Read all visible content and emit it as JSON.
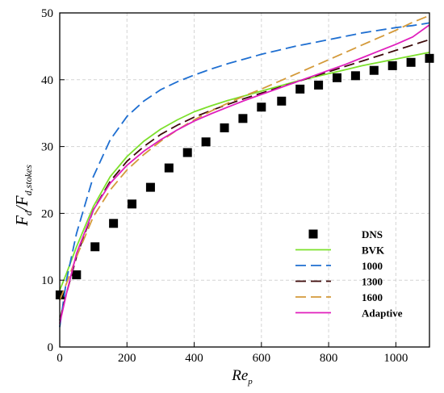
{
  "chart_data": {
    "type": "line",
    "xlabel": "Re",
    "xlabel_sub": "p",
    "ylabel": "F",
    "ylabel_sub1": "d",
    "ylabel_mid": "/F",
    "ylabel_sub2": "d,stokes",
    "xlim": [
      0,
      1100
    ],
    "ylim": [
      0,
      50
    ],
    "xticks": [
      0,
      200,
      400,
      600,
      800,
      1000
    ],
    "yticks": [
      0,
      10,
      20,
      30,
      40,
      50
    ],
    "grid": true,
    "legend_position": "bottom-right",
    "series": [
      {
        "name": "DNS",
        "style": "square-marker",
        "color": "#000000",
        "x": [
          1,
          50,
          105,
          160,
          215,
          270,
          325,
          380,
          435,
          490,
          545,
          600,
          660,
          715,
          770,
          825,
          880,
          935,
          990,
          1045,
          1100
        ],
        "y": [
          7.8,
          10.8,
          15,
          18.5,
          21.4,
          23.9,
          26.8,
          29.1,
          30.7,
          32.8,
          34.2,
          35.9,
          36.8,
          38.6,
          39.2,
          40.3,
          40.6,
          41.4,
          42.1,
          42.6,
          43.2
        ]
      },
      {
        "name": "BVK",
        "style": "solid",
        "color": "#7de02c",
        "x": [
          0,
          20,
          50,
          100,
          150,
          200,
          250,
          300,
          350,
          400,
          450,
          500,
          550,
          600,
          650,
          700,
          750,
          800,
          850,
          900,
          950,
          1000,
          1050,
          1100
        ],
        "y": [
          8.5,
          11,
          15,
          21,
          25.5,
          28.5,
          30.8,
          32.6,
          34,
          35.2,
          36.1,
          36.9,
          37.6,
          38.3,
          39,
          39.7,
          40.3,
          40.9,
          41.5,
          42.1,
          42.6,
          43.1,
          43.6,
          44.1
        ]
      },
      {
        "name": "1000",
        "style": "dash",
        "color": "#1f6fd1",
        "x": [
          0,
          20,
          50,
          100,
          150,
          200,
          250,
          300,
          350,
          400,
          450,
          500,
          550,
          600,
          650,
          700,
          750,
          800,
          850,
          900,
          950,
          1000,
          1050,
          1100
        ],
        "y": [
          3,
          10,
          17,
          25.5,
          31,
          34.5,
          36.8,
          38.5,
          39.7,
          40.7,
          41.6,
          42.4,
          43.1,
          43.8,
          44.4,
          45,
          45.5,
          46,
          46.5,
          47,
          47.4,
          47.8,
          48.1,
          48.5
        ]
      },
      {
        "name": "1300",
        "style": "dash",
        "color": "#3d0a0a",
        "x": [
          0,
          20,
          50,
          100,
          150,
          200,
          250,
          300,
          350,
          400,
          450,
          500,
          550,
          600,
          650,
          700,
          750,
          800,
          850,
          900,
          950,
          1000,
          1050,
          1100
        ],
        "y": [
          4,
          8,
          13.5,
          20.5,
          24.8,
          27.8,
          30,
          31.8,
          33.2,
          34.4,
          35.4,
          36.3,
          37.2,
          38,
          38.8,
          39.6,
          40.4,
          41.2,
          42,
          42.8,
          43.6,
          44.4,
          45.2,
          46
        ]
      },
      {
        "name": "1600",
        "style": "dash",
        "color": "#d49a3a",
        "x": [
          0,
          20,
          50,
          100,
          150,
          200,
          250,
          300,
          350,
          400,
          450,
          500,
          550,
          600,
          650,
          700,
          750,
          800,
          850,
          900,
          950,
          1000,
          1050,
          1100
        ],
        "y": [
          7,
          9.5,
          13.5,
          19.5,
          23.5,
          26.5,
          28.8,
          30.8,
          32.5,
          34,
          35.3,
          36.5,
          37.6,
          38.6,
          39.7,
          40.8,
          41.9,
          43,
          44.1,
          45.2,
          46.3,
          47.4,
          48.6,
          49.6
        ]
      },
      {
        "name": "Adaptive",
        "style": "solid",
        "color": "#e01fbd",
        "x": [
          0,
          20,
          50,
          100,
          150,
          200,
          250,
          300,
          350,
          400,
          450,
          500,
          550,
          600,
          650,
          700,
          750,
          800,
          850,
          900,
          950,
          1000,
          1050,
          1100
        ],
        "y": [
          3.5,
          8,
          14,
          20.5,
          24.5,
          27.2,
          29.3,
          31,
          32.5,
          33.8,
          34.9,
          35.9,
          36.9,
          37.8,
          38.7,
          39.6,
          40.5,
          41.4,
          42.3,
          43.3,
          44.3,
          45.3,
          46.4,
          48.2
        ]
      }
    ]
  }
}
